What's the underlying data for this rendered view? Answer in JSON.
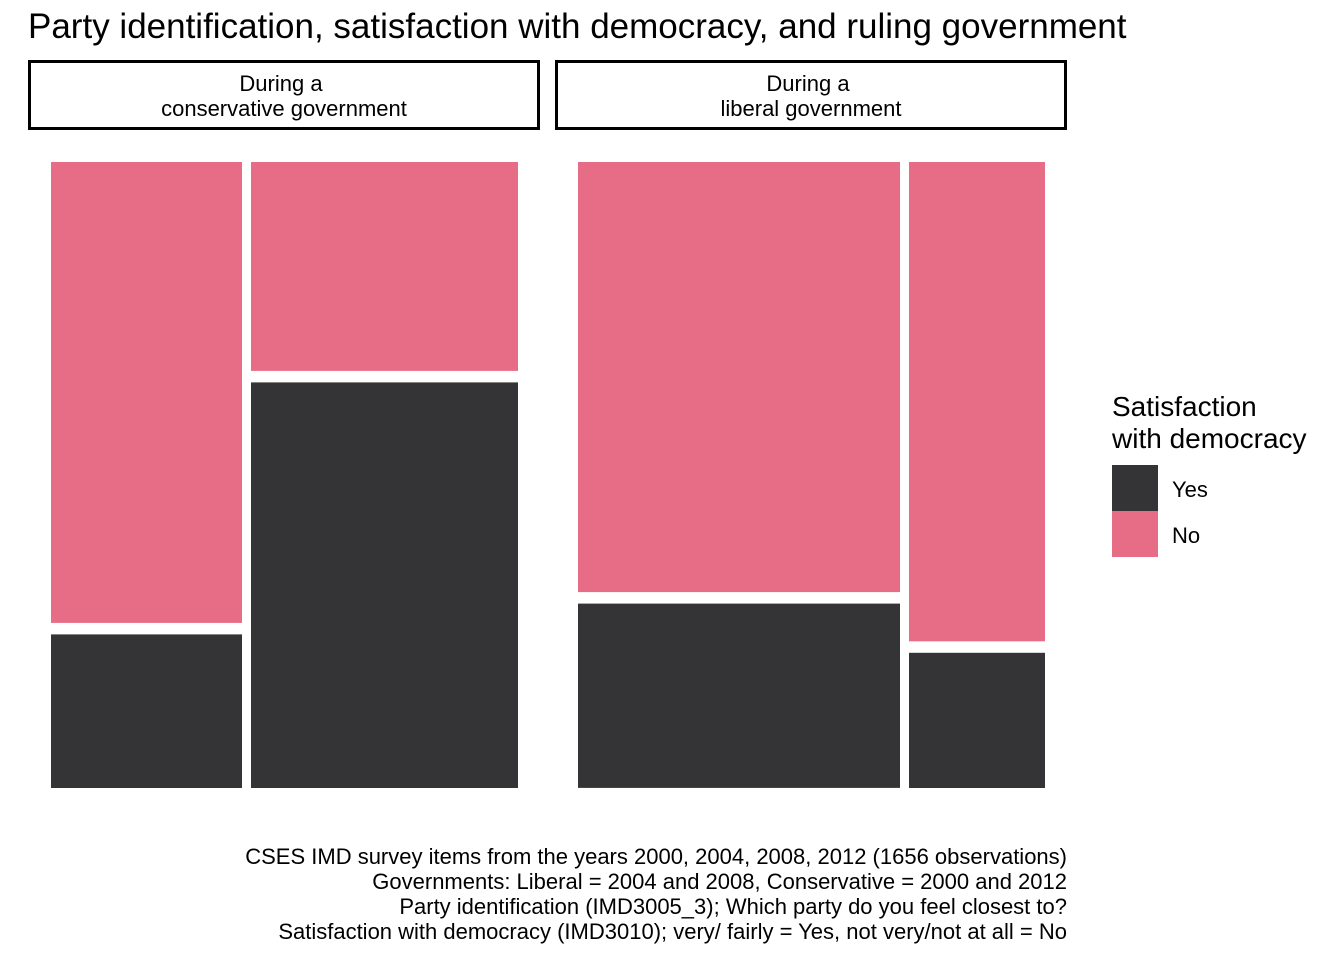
{
  "title": "Party identification, satisfaction with democracy, and ruling government",
  "legend": {
    "title_line1": "Satisfaction",
    "title_line2": "with democracy",
    "items": [
      {
        "label": "Yes",
        "color": "#343436"
      },
      {
        "label": "No",
        "color": "#e76d86"
      }
    ]
  },
  "caption": [
    "CSES IMD survey items from the years 2000, 2004, 2008, 2012 (1656 observations)",
    "Governments: Liberal = 2004 and 2008, Conservative = 2000 and 2012",
    "Party identification (IMD3005_3); Which party do you feel closest to?",
    "Satisfaction with democracy (IMD3010); very/ fairly = Yes, not very/not at all = No"
  ],
  "chart_data": {
    "type": "mosaic",
    "title": "Party identification, satisfaction with democracy, and ruling government",
    "facets": [
      {
        "label_line1": "During a",
        "label_line2": "conservative government",
        "columns": [
          {
            "width_share": 0.417,
            "yes_share": 0.25,
            "no_share": 0.75
          },
          {
            "width_share": 0.583,
            "yes_share": 0.66,
            "no_share": 0.34
          }
        ]
      },
      {
        "label_line1": "During a",
        "label_line2": "liberal government",
        "columns": [
          {
            "width_share": 0.703,
            "yes_share": 0.3,
            "no_share": 0.7
          },
          {
            "width_share": 0.297,
            "yes_share": 0.22,
            "no_share": 0.78
          }
        ]
      }
    ],
    "series": [
      {
        "name": "Yes",
        "color": "#343436"
      },
      {
        "name": "No",
        "color": "#e76d86"
      }
    ],
    "legend_position": "right"
  }
}
